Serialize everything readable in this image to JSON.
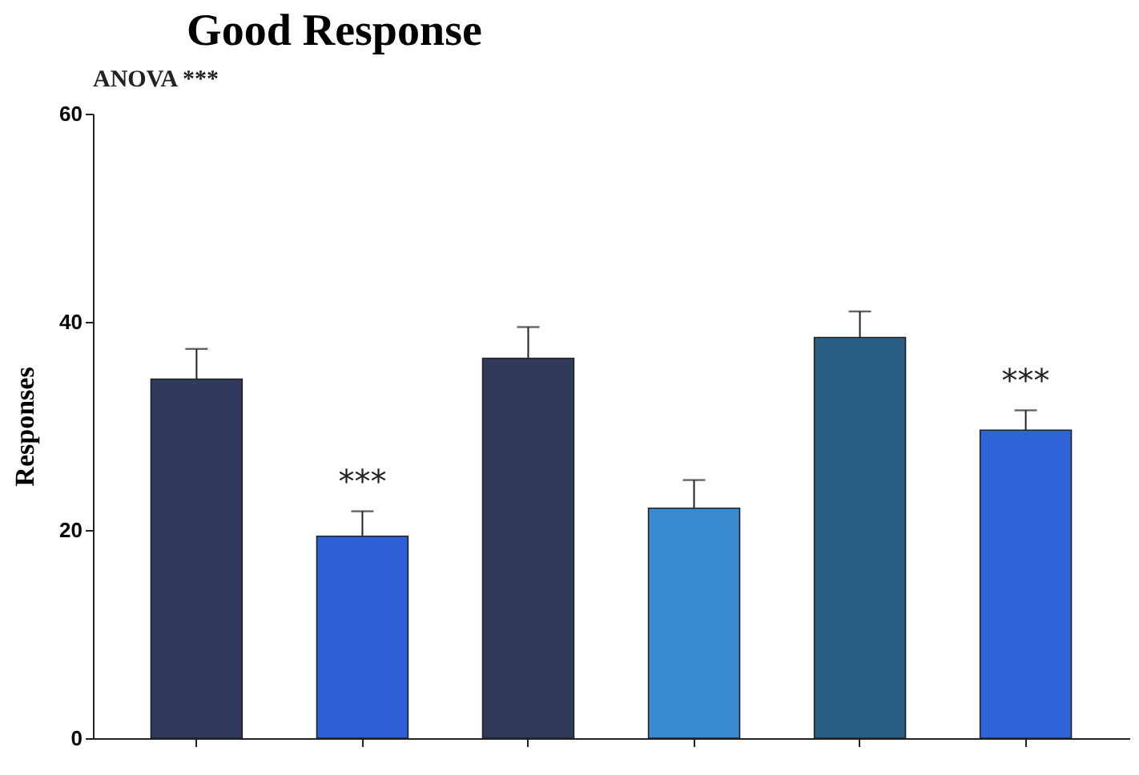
{
  "chart_data": {
    "type": "bar",
    "title": "Good Response",
    "ylabel": "Responses",
    "categories": [
      null,
      null,
      null,
      null,
      null,
      null
    ],
    "values": [
      34.5,
      19.4,
      36.5,
      22.1,
      38.5,
      29.6
    ],
    "errors": [
      [
        34.5,
        37.4
      ],
      [
        19.4,
        21.8
      ],
      [
        36.5,
        39.5
      ],
      [
        22.1,
        24.8
      ],
      [
        38.5,
        41.0
      ],
      [
        29.6,
        31.5
      ]
    ],
    "colors": [
      "#2f3a5c",
      "#2d5fd6",
      "#2e3a5a",
      "#3a8ad0",
      "#2a5e84",
      "#2f64d8"
    ],
    "annotations": [
      "ANOVA ***",
      "***",
      "***"
    ],
    "ylim": [
      0,
      60
    ],
    "yticks": [
      0,
      20,
      40,
      60
    ],
    "grid": false
  }
}
